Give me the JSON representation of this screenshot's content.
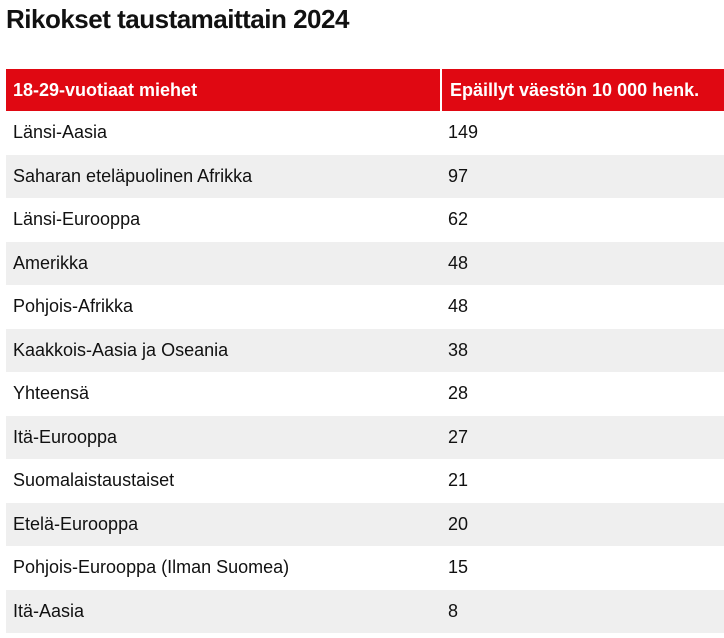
{
  "chart_data": {
    "type": "table",
    "title": "Rikokset taustamaittain 2024",
    "columns": [
      "18-29-vuotiaat miehet",
      "Epäillyt väestön 10 000 henk."
    ],
    "rows": [
      {
        "category": "Länsi-Aasia",
        "value": 149
      },
      {
        "category": "Saharan eteläpuolinen Afrikka",
        "value": 97
      },
      {
        "category": "Länsi-Eurooppa",
        "value": 62
      },
      {
        "category": "Amerikka",
        "value": 48
      },
      {
        "category": "Pohjois-Afrikka",
        "value": 48
      },
      {
        "category": "Kaakkois-Aasia ja Oseania",
        "value": 38
      },
      {
        "category": "Yhteensä",
        "value": 28
      },
      {
        "category": "Itä-Eurooppa",
        "value": 27
      },
      {
        "category": "Suomalaistaustaiset",
        "value": 21
      },
      {
        "category": "Etelä-Eurooppa",
        "value": 20
      },
      {
        "category": "Pohjois-Eurooppa (Ilman Suomea)",
        "value": 15
      },
      {
        "category": "Itä-Aasia",
        "value": 8
      }
    ],
    "colors": {
      "header_background": "#e00812",
      "header_text": "#ffffff",
      "stripe": "#efefef"
    }
  }
}
